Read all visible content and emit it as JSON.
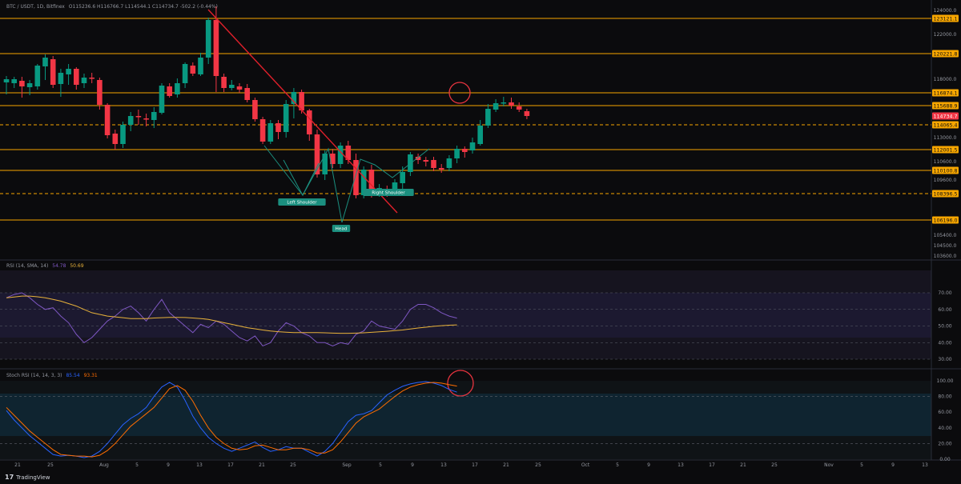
{
  "header": {
    "symbol": "BTC / USDT, 1D, Bitfinex",
    "ohlc": "O115236.6  H116766.7  L114544.1  C114734.7  -502.2 (-0.44%)"
  },
  "colors": {
    "background": "#0b0b0d",
    "up": "#089981",
    "down": "#f23645",
    "level": "#f7a600",
    "trendline": "#e0202b",
    "pattern": "#1b8f7f",
    "rsi_line": "#7e57c2",
    "rsi_ma": "#e8b23a",
    "stoch_k": "#2962ff",
    "stoch_d": "#ff6d00",
    "circle": "#e8343f"
  },
  "price_axis": {
    "ticks": [
      "124000.0",
      "122000.0",
      "118000.0",
      "113000.0",
      "110600.0",
      "109600.0",
      "105400.0",
      "104500.0",
      "103600.0"
    ],
    "levels": [
      {
        "label": "123121.1",
        "style": "solid"
      },
      {
        "label": "120221.8",
        "style": "solid"
      },
      {
        "label": "116874.1",
        "style": "solid"
      },
      {
        "label": "115688.9",
        "style": "solid"
      },
      {
        "label": "114734.7",
        "style": "current"
      },
      {
        "label": "114065.4",
        "style": "dashed"
      },
      {
        "label": "112001.5",
        "style": "solid"
      },
      {
        "label": "110100.8",
        "style": "solid"
      },
      {
        "label": "108396.5",
        "style": "dashed"
      },
      {
        "label": "106196.0",
        "style": "solid"
      }
    ]
  },
  "pattern_labels": {
    "left_shoulder": "Left Shoulder",
    "head": "Head",
    "right_shoulder": "Right Shoulder"
  },
  "rsi": {
    "legend": "RSI (14, SMA, 14)",
    "value": "54.78",
    "ma_value": "50.69",
    "ticks": [
      "70.00",
      "60.00",
      "50.00",
      "40.00",
      "30.00"
    ],
    "values": [
      67,
      69,
      70,
      67,
      63,
      60,
      61,
      56,
      52,
      45,
      40,
      43,
      48,
      53,
      56,
      60,
      62,
      58,
      53,
      60,
      66,
      58,
      54,
      50,
      46,
      51,
      49,
      53,
      51,
      47,
      43,
      41,
      44,
      38,
      40,
      47,
      52,
      50,
      46,
      44,
      40,
      40,
      38,
      40,
      39,
      45,
      47,
      53,
      50,
      49,
      48,
      53,
      60,
      63,
      63,
      61,
      58,
      56,
      54.78
    ],
    "ma": [
      67,
      67.5,
      68,
      68,
      67.6,
      67,
      66,
      65,
      63.5,
      62,
      60,
      58,
      57,
      56,
      55.5,
      55,
      54.5,
      54.5,
      54.5,
      54.8,
      55,
      55.2,
      55.2,
      55.1,
      54.8,
      54.5,
      54,
      53,
      52,
      51,
      50,
      49,
      48.3,
      47.6,
      47,
      46.6,
      46.3,
      46,
      46,
      46,
      46,
      45.9,
      45.7,
      45.6,
      45.6,
      45.7,
      45.9,
      46.2,
      46.5,
      46.8,
      47.2,
      47.6,
      48.2,
      48.8,
      49.3,
      49.8,
      50.2,
      50.5,
      50.69
    ]
  },
  "stoch": {
    "legend": "Stoch RSI (14, 14, 3, 3)",
    "k_value": "85.54",
    "d_value": "93.31",
    "ticks": [
      "100.00",
      "80.00",
      "60.00",
      "40.00",
      "20.00",
      "0.00"
    ],
    "k": [
      62,
      50,
      40,
      30,
      22,
      14,
      6,
      4,
      5,
      4,
      2,
      4,
      10,
      20,
      32,
      44,
      52,
      58,
      66,
      80,
      92,
      98,
      92,
      75,
      55,
      40,
      28,
      20,
      14,
      10,
      14,
      18,
      22,
      15,
      10,
      12,
      16,
      14,
      14,
      9,
      4,
      10,
      20,
      34,
      48,
      56,
      58,
      62,
      72,
      82,
      88,
      93,
      96,
      98,
      99,
      97,
      94,
      89,
      85.54
    ],
    "d": [
      66,
      56,
      46,
      36,
      28,
      20,
      12,
      6,
      5,
      4,
      4,
      3,
      5,
      11,
      20,
      31,
      42,
      50,
      58,
      66,
      78,
      90,
      94,
      88,
      74,
      56,
      40,
      28,
      20,
      14,
      12,
      13,
      17,
      18,
      15,
      12,
      12,
      14,
      14,
      12,
      8,
      8,
      12,
      22,
      34,
      46,
      54,
      59,
      64,
      72,
      80,
      87,
      92,
      95,
      97,
      98,
      97,
      95,
      93.31
    ]
  },
  "time_axis": {
    "labels": [
      "21",
      "25",
      "Aug",
      "5",
      "9",
      "13",
      "17",
      "21",
      "25",
      "Sep",
      "5",
      "9",
      "13",
      "17",
      "21",
      "25",
      "Oct",
      "5",
      "9",
      "13",
      "17",
      "21",
      "25",
      "Nov",
      "5",
      "9",
      "13"
    ]
  },
  "footer": {
    "brand": "TradingView"
  }
}
